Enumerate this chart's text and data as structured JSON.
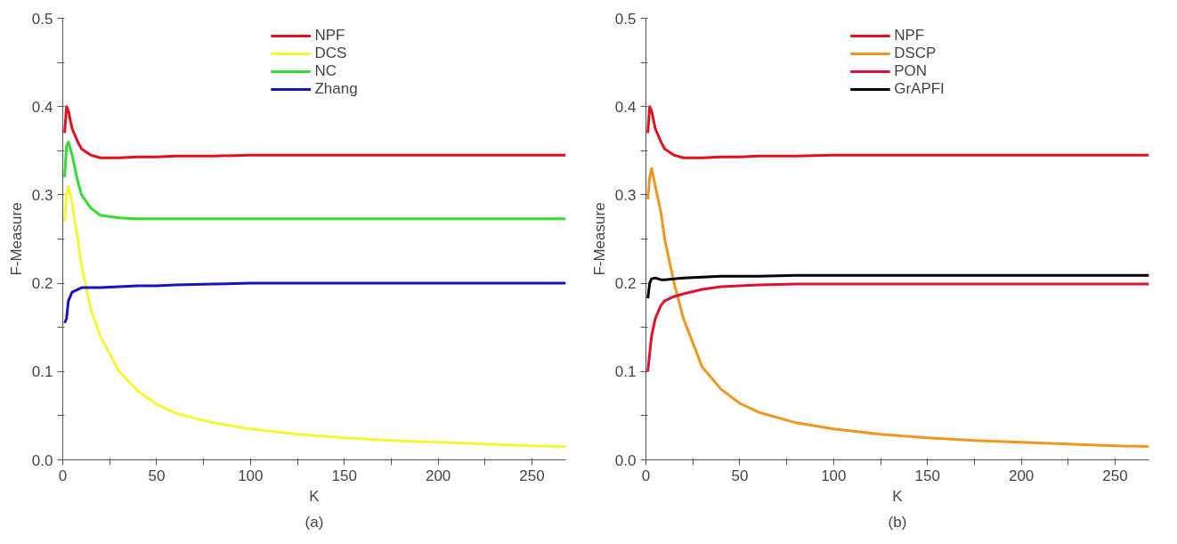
{
  "chart_data": [
    {
      "type": "line",
      "xlabel": "K",
      "ylabel": "F-Measure",
      "annotations": [
        "(a)"
      ],
      "legend": "top",
      "grid": false,
      "marker": "none",
      "line_style": "solid",
      "xlim": [
        0,
        268
      ],
      "ylim": [
        0,
        0.5
      ],
      "xticks": [
        0,
        {
          "value": 25,
          "label": null
        },
        50,
        {
          "value": 75,
          "label": null
        },
        100,
        {
          "value": 125,
          "label": null
        },
        150,
        {
          "value": 175,
          "label": null
        },
        200,
        {
          "value": 225,
          "label": null
        },
        250
      ],
      "yticks": [
        "0.0",
        {
          "value": 0.05,
          "label": null
        },
        0.1,
        {
          "value": 0.15,
          "label": null
        },
        0.2,
        {
          "value": 0.25,
          "label": null
        },
        0.3,
        {
          "value": 0.35,
          "label": null
        },
        0.4,
        {
          "value": 0.45,
          "label": null
        },
        0.5
      ],
      "x": [
        1,
        2,
        3,
        5,
        8,
        10,
        15,
        20,
        30,
        40,
        50,
        60,
        80,
        100,
        125,
        150,
        175,
        200,
        225,
        250,
        268
      ],
      "series": [
        {
          "name": "NPF",
          "color": "#e0101e",
          "values": [
            0.37,
            0.4,
            0.395,
            0.375,
            0.36,
            0.352,
            0.345,
            0.342,
            0.342,
            0.343,
            0.343,
            0.344,
            0.344,
            0.345,
            0.345,
            0.345,
            0.345,
            0.345,
            0.345,
            0.345,
            0.345
          ]
        },
        {
          "name": "DCS",
          "color": "#f5f532",
          "values": [
            0.27,
            0.3,
            0.31,
            0.29,
            0.25,
            0.22,
            0.17,
            0.14,
            0.1,
            0.078,
            0.063,
            0.053,
            0.042,
            0.035,
            0.029,
            0.025,
            0.022,
            0.02,
            0.018,
            0.016,
            0.015
          ]
        },
        {
          "name": "NC",
          "color": "#33dd33",
          "values": [
            0.32,
            0.355,
            0.36,
            0.345,
            0.315,
            0.3,
            0.285,
            0.277,
            0.274,
            0.273,
            0.273,
            0.273,
            0.273,
            0.273,
            0.273,
            0.273,
            0.273,
            0.273,
            0.273,
            0.273,
            0.273
          ]
        },
        {
          "name": "Zhang",
          "color": "#1515c0",
          "values": [
            0.155,
            0.16,
            0.18,
            0.19,
            0.193,
            0.195,
            0.195,
            0.195,
            0.196,
            0.197,
            0.197,
            0.198,
            0.199,
            0.2,
            0.2,
            0.2,
            0.2,
            0.2,
            0.2,
            0.2,
            0.2
          ]
        }
      ]
    },
    {
      "type": "line",
      "xlabel": "K",
      "ylabel": "F-Measure",
      "annotations": [
        "(b)"
      ],
      "legend": "top",
      "grid": false,
      "marker": "none",
      "line_style": "solid",
      "xlim": [
        0,
        268
      ],
      "ylim": [
        0,
        0.5
      ],
      "xticks": [
        0,
        {
          "value": 25,
          "label": null
        },
        50,
        {
          "value": 75,
          "label": null
        },
        100,
        {
          "value": 125,
          "label": null
        },
        150,
        {
          "value": 175,
          "label": null
        },
        200,
        {
          "value": 225,
          "label": null
        },
        250
      ],
      "yticks": [
        "0.0",
        {
          "value": 0.05,
          "label": null
        },
        0.1,
        {
          "value": 0.15,
          "label": null
        },
        0.2,
        {
          "value": 0.25,
          "label": null
        },
        0.3,
        {
          "value": 0.35,
          "label": null
        },
        0.4,
        {
          "value": 0.45,
          "label": null
        },
        0.5
      ],
      "x": [
        1,
        2,
        3,
        5,
        8,
        10,
        15,
        20,
        30,
        40,
        50,
        60,
        80,
        100,
        125,
        150,
        175,
        200,
        225,
        250,
        268
      ],
      "series": [
        {
          "name": "NPF",
          "color": "#e0101e",
          "values": [
            0.37,
            0.4,
            0.395,
            0.375,
            0.36,
            0.352,
            0.345,
            0.342,
            0.342,
            0.343,
            0.343,
            0.344,
            0.344,
            0.345,
            0.345,
            0.345,
            0.345,
            0.345,
            0.345,
            0.345,
            0.345
          ]
        },
        {
          "name": "DSCP",
          "color": "#f0961e",
          "values": [
            0.295,
            0.32,
            0.33,
            0.31,
            0.28,
            0.25,
            0.2,
            0.16,
            0.105,
            0.08,
            0.064,
            0.054,
            0.042,
            0.035,
            0.029,
            0.025,
            0.022,
            0.02,
            0.018,
            0.016,
            0.015
          ]
        },
        {
          "name": "PON",
          "color": "#e01030",
          "values": [
            0.1,
            0.12,
            0.14,
            0.16,
            0.175,
            0.18,
            0.185,
            0.188,
            0.193,
            0.196,
            0.197,
            0.198,
            0.199,
            0.199,
            0.199,
            0.199,
            0.199,
            0.199,
            0.199,
            0.199,
            0.199
          ]
        },
        {
          "name": "GrAPFI",
          "color": "#000000",
          "values": [
            0.183,
            0.2,
            0.205,
            0.206,
            0.204,
            0.204,
            0.205,
            0.206,
            0.207,
            0.208,
            0.208,
            0.208,
            0.209,
            0.209,
            0.209,
            0.209,
            0.209,
            0.209,
            0.209,
            0.209,
            0.209
          ]
        }
      ]
    }
  ]
}
